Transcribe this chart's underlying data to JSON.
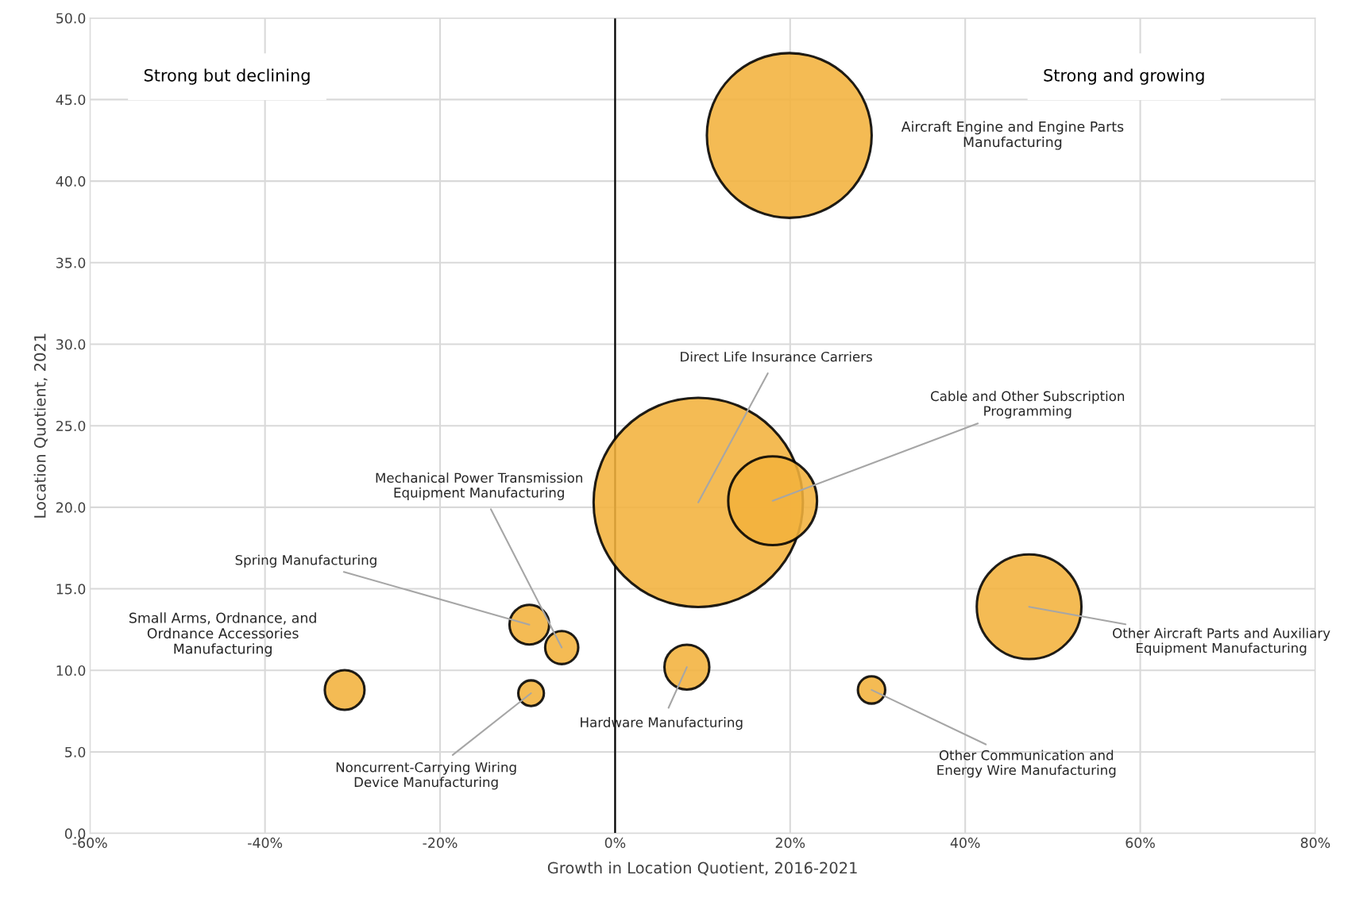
{
  "chart_data": {
    "type": "bubble",
    "xlabel": "Growth in Location Quotient, 2016-2021",
    "ylabel": "Location Quotient, 2021",
    "xlim": [
      -60,
      80
    ],
    "xticks": [
      {
        "value": -60,
        "label": "-60%"
      },
      {
        "value": -40,
        "label": "-40%"
      },
      {
        "value": -20,
        "label": "-20%"
      },
      {
        "value": 0,
        "label": "0%"
      },
      {
        "value": 20,
        "label": "20%"
      },
      {
        "value": 40,
        "label": "40%"
      },
      {
        "value": 60,
        "label": "60%"
      },
      {
        "value": 80,
        "label": "80%"
      }
    ],
    "ylim": [
      0,
      50
    ],
    "yticks": [
      {
        "value": 0,
        "label": "0.0"
      },
      {
        "value": 5,
        "label": "5.0"
      },
      {
        "value": 10,
        "label": "10.0"
      },
      {
        "value": 15,
        "label": "15.0"
      },
      {
        "value": 20,
        "label": "20.0"
      },
      {
        "value": 25,
        "label": "25.0"
      },
      {
        "value": 30,
        "label": "30.0"
      },
      {
        "value": 35,
        "label": "35.0"
      },
      {
        "value": 40,
        "label": "40.0"
      },
      {
        "value": 45,
        "label": "45.0"
      },
      {
        "value": 50,
        "label": "50.0"
      }
    ],
    "grid": true,
    "series": [
      {
        "color": "#f2b23c",
        "x": [
          19.9,
          9.5,
          18.0,
          47.3,
          -6.1,
          -9.8,
          -30.9,
          -9.6,
          8.2,
          29.3
        ],
        "values": [
          42.8,
          20.3,
          20.4,
          13.9,
          11.4,
          12.8,
          8.8,
          8.6,
          10.2,
          8.8
        ],
        "sizes": [
          0.62,
          1,
          0.18,
          0.25,
          0.025,
          0.036,
          0.036,
          0.015,
          0.046,
          0.017
        ]
      }
    ],
    "ref_lines": [
      {
        "axis": "x",
        "value": 0,
        "color": "#000000"
      }
    ],
    "annotations": [
      {
        "text": "Direct Life Insurance Carriers",
        "x": 9.5,
        "y": 20.3
      },
      {
        "text": "Cable and Other Subscription\nProgramming",
        "x": 18.0,
        "y": 20.4
      },
      {
        "text": "Other Aircraft Parts and Auxiliary\nEquipment Manufacturing",
        "x": 47.3,
        "y": 13.9
      },
      {
        "text": "Mechanical Power Transmission\nEquipment Manufacturing",
        "x": -6.1,
        "y": 11.4
      },
      {
        "text": "Spring Manufacturing",
        "x": -9.8,
        "y": 12.8
      },
      {
        "text": "Noncurrent-Carrying Wiring\nDevice Manufacturing",
        "x": -9.6,
        "y": 8.6
      },
      {
        "text": "Hardware Manufacturing",
        "x": 8.2,
        "y": 10.2
      },
      {
        "text": "Other Communication and\nEnergy Wire Manufacturing",
        "x": 29.3,
        "y": 8.8
      },
      "Aircraft Engine and Engine Parts\nManufacturing",
      "Small Arms, Ordnance, and\nOrdnance Accessories\nManufacturing",
      "Strong but declining",
      "Strong and growing"
    ]
  }
}
